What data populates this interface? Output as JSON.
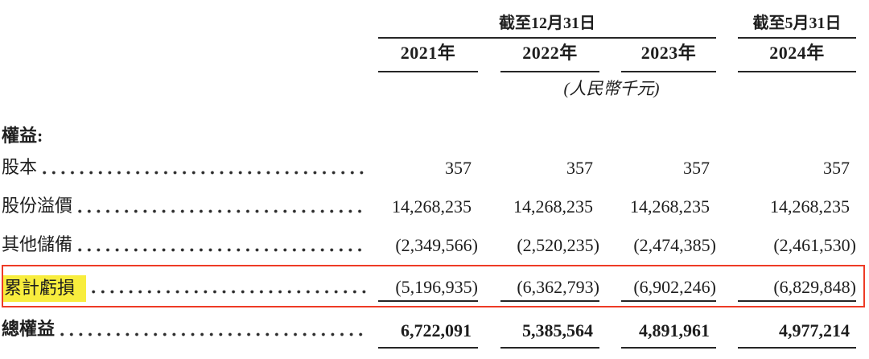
{
  "document": {
    "header": {
      "period_group_dec": "截至12月31日",
      "period_group_may": "截至5月31日",
      "years": [
        "2021年",
        "2022年",
        "2023年",
        "2024年"
      ],
      "unit_note": "(人民幣千元)"
    },
    "section_label": "權益:",
    "rows": [
      {
        "label": "股本",
        "values": [
          "357",
          "357",
          "357",
          "357"
        ]
      },
      {
        "label": "股份溢價",
        "values": [
          "14,268,235",
          "14,268,235",
          "14,268,235",
          "14,268,235"
        ]
      },
      {
        "label": "其他儲備",
        "values": [
          "(2,349,566)",
          "(2,520,235)",
          "(2,474,385)",
          "(2,461,530)"
        ]
      },
      {
        "label": "累計虧損",
        "values": [
          "(5,196,935)",
          "(6,362,793)",
          "(6,902,246)",
          "(6,829,848)"
        ],
        "highlighted": true
      },
      {
        "label": "總權益",
        "values": [
          "6,722,091",
          "5,385,564",
          "4,891,961",
          "4,977,214"
        ],
        "total": true
      }
    ],
    "annotations": {
      "highlight_color": "#F8ED3D",
      "box_color": "#EE3B26"
    }
  }
}
